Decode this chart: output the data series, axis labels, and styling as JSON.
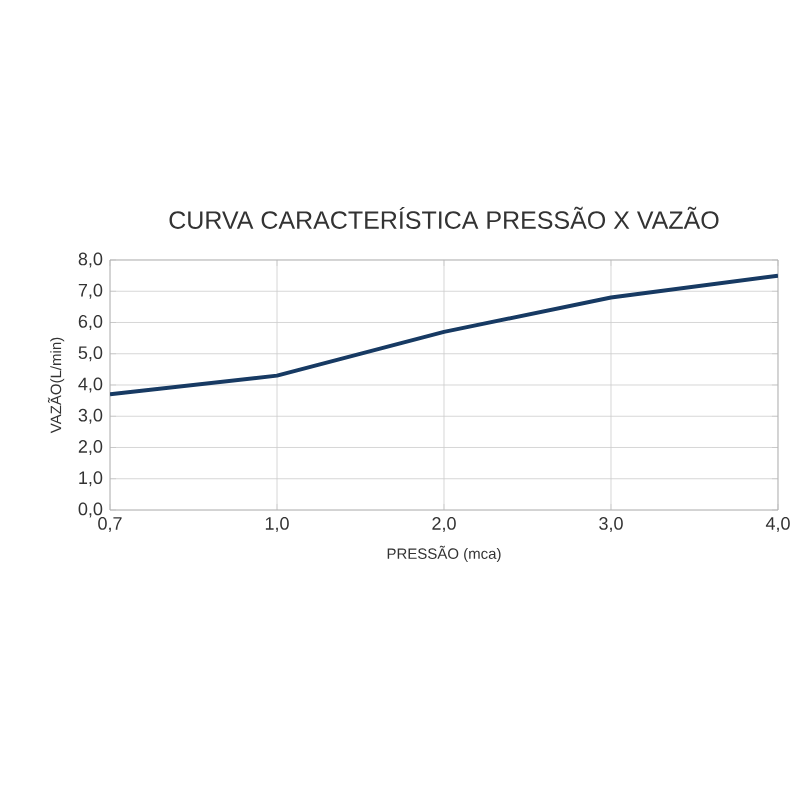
{
  "chart_data": {
    "type": "line",
    "title": "CURVA CARACTERÍSTICA PRESSÃO X VAZÃO",
    "xlabel": "PRESSÃO (mca)",
    "ylabel": "VAZÃO(L/min)",
    "categories": [
      "0,7",
      "1,0",
      "2,0",
      "3,0",
      "4,0"
    ],
    "series": [
      {
        "color": "#173a63",
        "values": [
          3.7,
          4.3,
          5.7,
          6.8,
          7.5
        ]
      }
    ],
    "ylim": [
      0,
      8
    ],
    "yticks": [
      {
        "value": 0,
        "label": "0,0"
      },
      {
        "value": 1,
        "label": "1,0"
      },
      {
        "value": 2,
        "label": "2,0"
      },
      {
        "value": 3,
        "label": "3,0"
      },
      {
        "value": 4,
        "label": "4,0"
      },
      {
        "value": 5,
        "label": "5,0"
      },
      {
        "value": 6,
        "label": "6,0"
      },
      {
        "value": 7,
        "label": "7,0"
      },
      {
        "value": 8,
        "label": "8,0"
      }
    ],
    "grid": true,
    "marker": "none",
    "line_style": "solid"
  }
}
